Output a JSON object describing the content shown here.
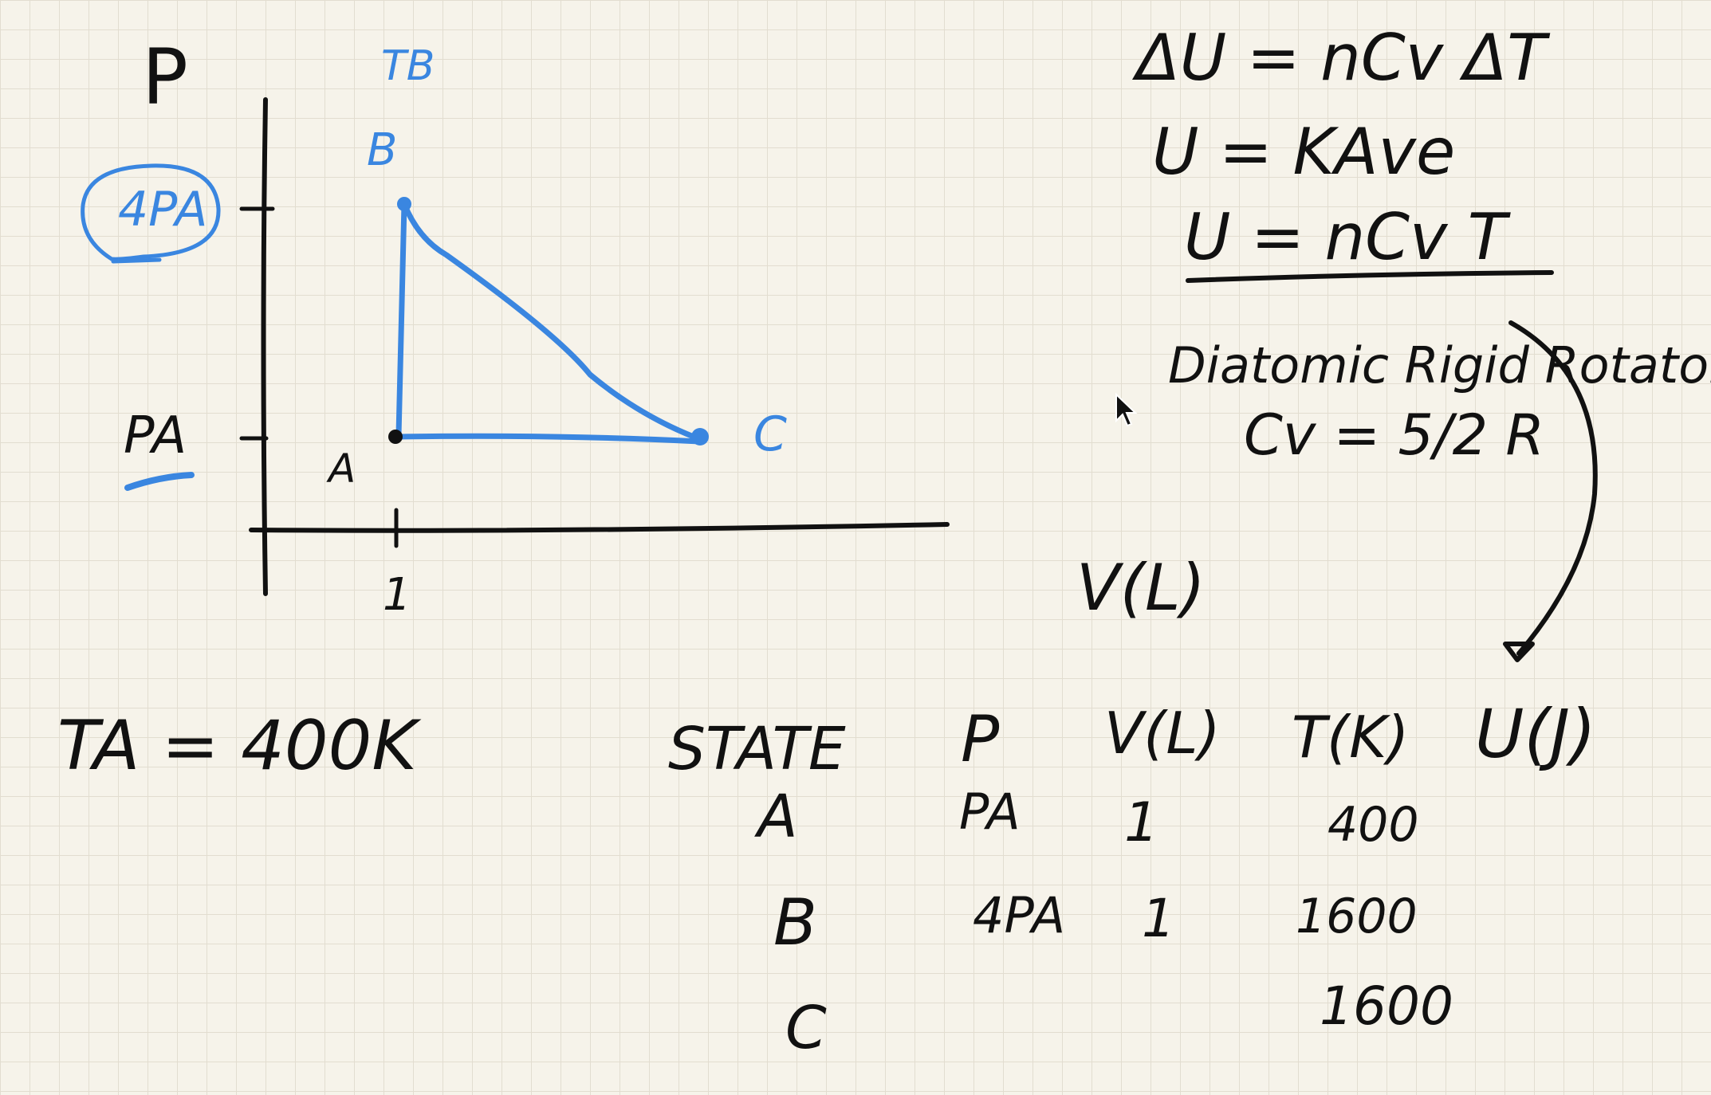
{
  "graph": {
    "y_axis_label": "P",
    "x_axis_label": "V(L)",
    "temp_label": "TB",
    "point_labels": {
      "A": "A",
      "B": "B",
      "C": "C"
    },
    "y_ticks": {
      "high": "4PA",
      "low": "PA"
    },
    "x_tick": "1"
  },
  "given": {
    "TA": "TA = 400K"
  },
  "equations": {
    "line1": "ΔU = nCv ΔT",
    "line2": "U = KAve",
    "line3": "U = nCv T",
    "line4": "Diatomic Rigid Rotator",
    "line5": "Cv = 5/2 R"
  },
  "table": {
    "headers": [
      "STATE",
      "P",
      "V(L)",
      "T(K)",
      "U(J)"
    ],
    "rows": [
      [
        "A",
        "PA",
        "1",
        "400",
        ""
      ],
      [
        "B",
        "4PA",
        "1",
        "1600",
        ""
      ],
      [
        "C",
        "",
        "",
        "1600",
        ""
      ]
    ]
  },
  "colors": {
    "ink": "#111111",
    "blue": "#3a86e0",
    "paper": "#f6f3ea",
    "grid": "#e2ddd0"
  }
}
